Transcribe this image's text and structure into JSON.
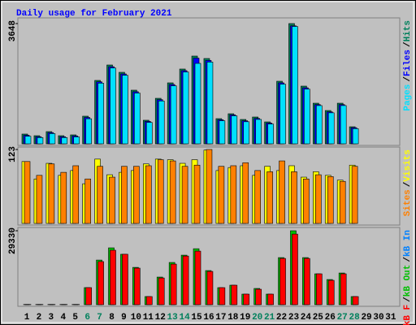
{
  "chart_data": [
    {
      "type": "bar",
      "title": "Daily usage for February 2021",
      "ylim": [
        0,
        3648
      ],
      "yticks": [
        3648
      ],
      "legend_separator": "/",
      "series": [
        {
          "name": "Pages",
          "color": "#00e0ff",
          "values": [
            230,
            190,
            310,
            190,
            210,
            760,
            1840,
            2300,
            2080,
            1540,
            650,
            1300,
            1760,
            2180,
            2440,
            2480,
            700,
            850,
            670,
            740,
            600,
            1810,
            3560,
            1660,
            1160,
            940,
            1160,
            460,
            null,
            null,
            null
          ]
        },
        {
          "name": "Files",
          "color": "#0000ff",
          "values": [
            260,
            215,
            340,
            215,
            240,
            800,
            1880,
            2340,
            2120,
            1580,
            680,
            1340,
            1800,
            2220,
            2600,
            2530,
            730,
            880,
            700,
            770,
            630,
            1850,
            3580,
            1700,
            1190,
            970,
            1190,
            490,
            null,
            null,
            null
          ]
        },
        {
          "name": "Hits",
          "color": "#00805c",
          "values": [
            296,
            246,
            370,
            246,
            271,
            838,
            1923,
            2391,
            2169,
            1627,
            715,
            1380,
            1849,
            2268,
            2662,
            2588,
            764,
            912,
            739,
            813,
            665,
            1898,
            3648,
            1750,
            1232,
            1010,
            1232,
            517,
            null,
            null,
            null
          ]
        }
      ]
    },
    {
      "type": "bar",
      "ylim": [
        0,
        123
      ],
      "yticks": [
        123
      ],
      "series": [
        {
          "name": "Sites",
          "color": "#ff8000",
          "values": [
            103,
            80,
            99,
            85,
            96,
            74,
            95,
            77,
            95,
            95,
            96,
            106,
            104,
            95,
            97,
            123,
            95,
            96,
            101,
            88,
            86,
            104,
            86,
            74,
            81,
            78,
            70,
            95,
            null,
            null,
            null
          ]
        },
        {
          "name": "Visits",
          "color": "#ffff00",
          "values": [
            103,
            74,
            100,
            80,
            88,
            66,
            107,
            81,
            85,
            88,
            99,
            107,
            106,
            100,
            106,
            122,
            88,
            93,
            96,
            80,
            95,
            88,
            96,
            77,
            86,
            80,
            72,
            97,
            null,
            null,
            null
          ]
        }
      ]
    },
    {
      "type": "bar",
      "ylim": [
        0,
        29330
      ],
      "yticks": [
        29330
      ],
      "weekend_color": "#00805c",
      "categories": [
        "1",
        "2",
        "3",
        "4",
        "5",
        "6",
        "7",
        "8",
        "9",
        "10",
        "11",
        "12",
        "13",
        "14",
        "15",
        "16",
        "17",
        "18",
        "19",
        "20",
        "21",
        "22",
        "23",
        "24",
        "25",
        "26",
        "27",
        "28",
        "29",
        "30",
        "31"
      ],
      "series": [
        {
          "name": "kB F",
          "color": "#ff0000",
          "values": [
            100,
            100,
            100,
            100,
            100,
            6770,
            17100,
            21600,
            20000,
            14500,
            3220,
            10600,
            16100,
            19300,
            21250,
            13200,
            6760,
            7730,
            4190,
            6120,
            4190,
            18350,
            28000,
            18350,
            12240,
            9660,
            12240,
            3220,
            null,
            null,
            null
          ]
        },
        {
          "name": "kB Out",
          "color": "#00c000",
          "values": [
            100,
            100,
            100,
            100,
            100,
            6770,
            17700,
            22550,
            20000,
            14800,
            3220,
            10950,
            16750,
            19640,
            22200,
            13530,
            6760,
            7730,
            4190,
            6440,
            4190,
            18680,
            29330,
            18680,
            12240,
            9980,
            12560,
            3220,
            null,
            null,
            null
          ]
        },
        {
          "name": "kB In",
          "color": "#0080ff",
          "values": [
            0,
            0,
            0,
            0,
            0,
            0,
            0,
            0,
            0,
            0,
            0,
            0,
            0,
            0,
            0,
            0,
            0,
            0,
            0,
            0,
            0,
            0,
            0,
            0,
            0,
            0,
            0,
            0,
            null,
            null,
            null
          ]
        }
      ]
    }
  ]
}
